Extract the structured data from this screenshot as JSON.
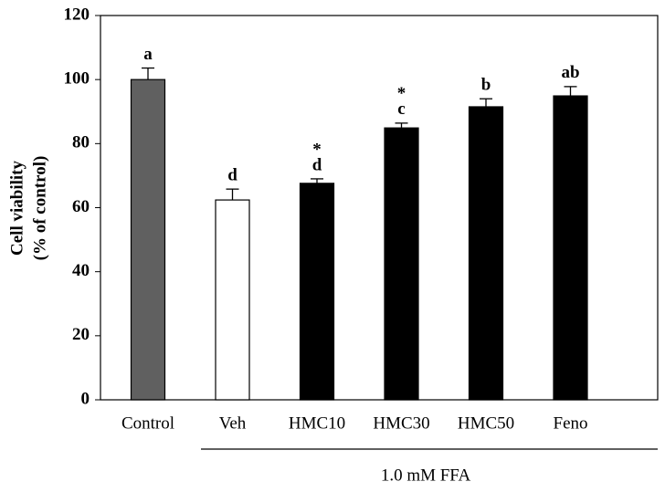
{
  "chart_data": {
    "type": "bar",
    "y_label_lines": [
      "Cell viability",
      "(% of control)"
    ],
    "categories": [
      "Control",
      "Veh",
      "HMC10",
      "HMC30",
      "HMC50",
      "Feno"
    ],
    "values": [
      100,
      62.4,
      67.6,
      84.9,
      91.5,
      94.9
    ],
    "errors": [
      3.6,
      3.4,
      1.4,
      1.5,
      2.5,
      2.9
    ],
    "colors": [
      "#606060",
      "#ffffff",
      "#000000",
      "#000000",
      "#000000",
      "#000000"
    ],
    "letters": [
      "a",
      "d",
      "d",
      "c",
      "b",
      "ab"
    ],
    "stars": [
      null,
      null,
      "*",
      "*",
      null,
      null
    ],
    "group_label": "1.0 mM FFA",
    "ylim": [
      0,
      120
    ],
    "yticks": [
      0,
      20,
      40,
      60,
      80,
      100,
      120
    ],
    "grid": false
  }
}
